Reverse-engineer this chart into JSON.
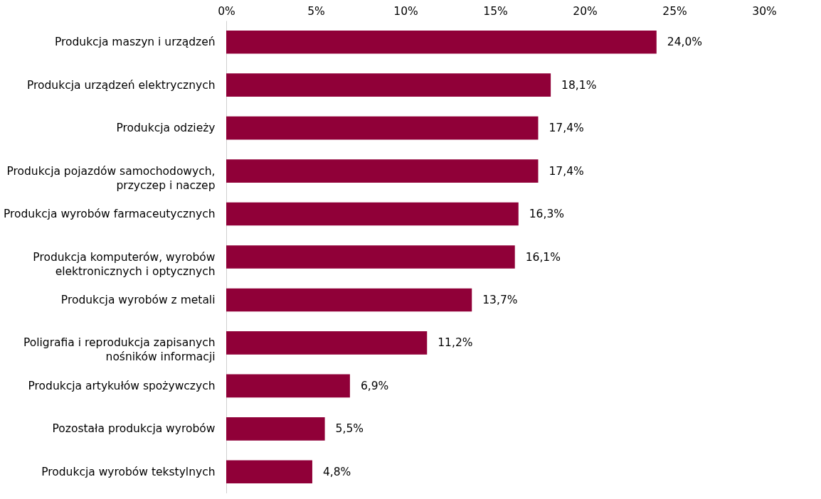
{
  "chart_data": {
    "type": "bar",
    "orientation": "horizontal",
    "categories": [
      "Produkcja maszyn i urządzeń",
      "Produkcja urządzeń elektrycznych",
      "Produkcja odzieży",
      "Produkcja pojazdów samochodowych, przyczep i naczep",
      "Produkcja wyrobów farmaceutycznych",
      "Produkcja komputerów, wyrobów elektronicznych i optycznych",
      "Produkcja wyrobów z metali",
      "Poligrafia i reprodukcja zapisanych nośników informacji",
      "Produkcja artykułów spożywczych",
      "Pozostała produkcja wyrobów",
      "Produkcja wyrobów tekstylnych"
    ],
    "values": [
      24.0,
      18.1,
      17.4,
      17.4,
      16.3,
      16.1,
      13.7,
      11.2,
      6.9,
      5.5,
      4.8
    ],
    "value_labels": [
      "24,0%",
      "18,1%",
      "17,4%",
      "17,4%",
      "16,3%",
      "16,1%",
      "13,7%",
      "11,2%",
      "6,9%",
      "5,5%",
      "4,8%"
    ],
    "color": "#900038",
    "xlim": [
      0,
      30
    ],
    "xticks": [
      {
        "value": 0,
        "label": "0%"
      },
      {
        "value": 5,
        "label": "5%"
      },
      {
        "value": 10,
        "label": "10%"
      },
      {
        "value": 15,
        "label": "15%"
      },
      {
        "value": 20,
        "label": "20%"
      },
      {
        "value": 25,
        "label": "25%"
      },
      {
        "value": 30,
        "label": "30%"
      }
    ],
    "grid": false
  }
}
